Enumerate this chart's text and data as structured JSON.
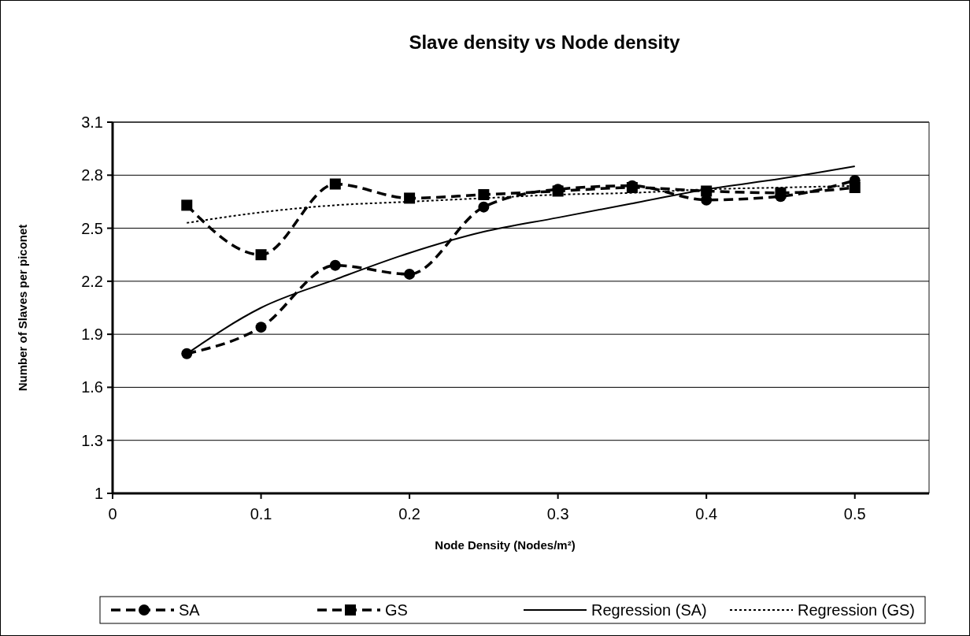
{
  "chart_data": {
    "type": "line",
    "title": "Slave density vs Node density",
    "xlabel": "Node Density (Nodes/m²)",
    "ylabel": "Number of Slaves per piconet",
    "x": [
      0.05,
      0.1,
      0.15,
      0.2,
      0.25,
      0.3,
      0.35,
      0.4,
      0.45,
      0.5
    ],
    "series": [
      {
        "name": "SA",
        "color": "#000000",
        "marker": "circle",
        "line_style": "dashed",
        "values": [
          1.79,
          1.94,
          2.29,
          2.24,
          2.62,
          2.72,
          2.74,
          2.66,
          2.68,
          2.77
        ]
      },
      {
        "name": "GS",
        "color": "#000000",
        "marker": "square",
        "line_style": "dashed",
        "values": [
          2.63,
          2.35,
          2.75,
          2.67,
          2.69,
          2.71,
          2.73,
          2.71,
          2.7,
          2.73
        ]
      },
      {
        "name": "Regression (SA)",
        "color": "#000000",
        "marker": "none",
        "line_style": "solid",
        "values": [
          1.79,
          2.05,
          2.21,
          2.36,
          2.48,
          2.56,
          2.64,
          2.72,
          2.78,
          2.85
        ]
      },
      {
        "name": "Regression (GS)",
        "color": "#000000",
        "marker": "none",
        "line_style": "dotted",
        "values": [
          2.53,
          2.59,
          2.63,
          2.65,
          2.67,
          2.69,
          2.7,
          2.72,
          2.73,
          2.74
        ]
      }
    ],
    "xlim": [
      0,
      0.55
    ],
    "xticks": [
      0,
      0.1,
      0.2,
      0.3,
      0.4,
      0.5
    ],
    "ylim": [
      1,
      3.1
    ],
    "yticks": [
      1,
      1.3,
      1.6,
      1.9,
      2.2,
      2.5,
      2.8,
      3.1
    ],
    "grid": "y",
    "legend": "bottom"
  }
}
